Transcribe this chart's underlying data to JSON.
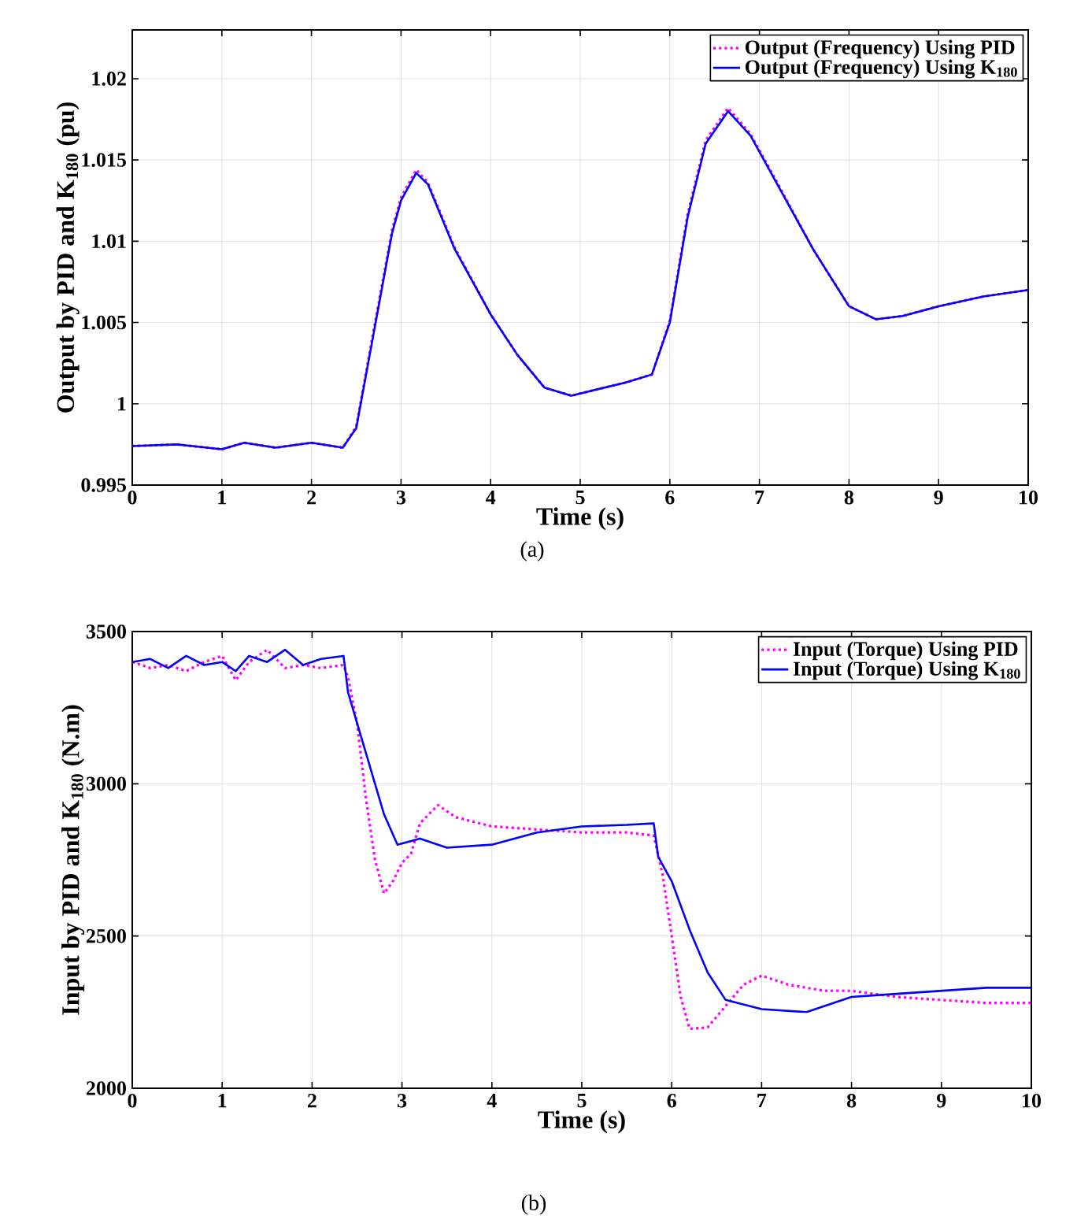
{
  "chart_data": [
    {
      "type": "line",
      "xlabel": "Time (s)",
      "ylabel": "Output by PID and K$_{180}$ (pu)",
      "annotations": [
        "(a)"
      ],
      "xlim": [
        0,
        10
      ],
      "ylim": [
        0.995,
        1.023
      ],
      "xticks": [
        0,
        1,
        2,
        3,
        4,
        5,
        6,
        7,
        8,
        9,
        10
      ],
      "yticks": [
        0.995,
        1,
        1.005,
        1.01,
        1.015,
        1.02
      ],
      "grid": true,
      "legend": "top right",
      "series": [
        {
          "name": "Output (Frequency) Using PID",
          "color": "#ff00ff",
          "line_style": "dotted",
          "x": [
            0,
            0.5,
            1.0,
            1.25,
            1.6,
            2.0,
            2.35,
            2.5,
            2.7,
            2.9,
            3.0,
            3.17,
            3.3,
            3.6,
            4.0,
            4.3,
            4.6,
            4.9,
            5.2,
            5.5,
            5.8,
            6.0,
            6.2,
            6.4,
            6.65,
            6.9,
            7.2,
            7.6,
            8.0,
            8.3,
            8.6,
            9.0,
            9.5,
            10
          ],
          "values": [
            0.9974,
            0.9975,
            0.9972,
            0.9976,
            0.9973,
            0.9976,
            0.9973,
            0.9986,
            1.0047,
            1.0107,
            1.0127,
            1.0144,
            1.0136,
            1.0096,
            1.0055,
            1.003,
            1.001,
            1.0005,
            1.0009,
            1.0013,
            1.0018,
            1.0051,
            1.0117,
            1.0162,
            1.0182,
            1.0166,
            1.0136,
            1.0095,
            1.006,
            1.0052,
            1.0054,
            1.006,
            1.0066,
            1.007
          ]
        },
        {
          "name": "Output (Frequency) Using K$_{180}$",
          "color": "#0000ff",
          "line_style": "solid",
          "x": [
            0,
            0.5,
            1.0,
            1.25,
            1.6,
            2.0,
            2.35,
            2.5,
            2.7,
            2.9,
            3.0,
            3.17,
            3.3,
            3.6,
            4.0,
            4.3,
            4.6,
            4.9,
            5.2,
            5.5,
            5.8,
            6.0,
            6.2,
            6.4,
            6.65,
            6.9,
            7.2,
            7.6,
            8.0,
            8.3,
            8.6,
            9.0,
            9.5,
            10
          ],
          "values": [
            0.9974,
            0.9975,
            0.9972,
            0.9976,
            0.9973,
            0.9976,
            0.9973,
            0.9985,
            1.0045,
            1.0105,
            1.0125,
            1.0142,
            1.0135,
            1.0095,
            1.0055,
            1.003,
            1.001,
            1.0005,
            1.0009,
            1.0013,
            1.0018,
            1.005,
            1.0115,
            1.016,
            1.018,
            1.0165,
            1.0135,
            1.0095,
            1.006,
            1.0052,
            1.0054,
            1.006,
            1.0066,
            1.007
          ]
        }
      ]
    },
    {
      "type": "line",
      "xlabel": "Time (s)",
      "ylabel": "Input by PID and K$_{180}$ (N.m)",
      "annotations": [
        "(b)"
      ],
      "xlim": [
        0,
        10
      ],
      "ylim": [
        2000,
        3500
      ],
      "xticks": [
        0,
        1,
        2,
        3,
        4,
        5,
        6,
        7,
        8,
        9,
        10
      ],
      "yticks": [
        2000,
        2500,
        3000,
        3500
      ],
      "grid": true,
      "legend": "top right",
      "series": [
        {
          "name": "Input (Torque) Using PID",
          "color": "#ff00ff",
          "line_style": "dotted",
          "x": [
            0,
            0.2,
            0.4,
            0.6,
            0.8,
            1.0,
            1.15,
            1.3,
            1.5,
            1.7,
            1.9,
            2.1,
            2.35,
            2.4,
            2.5,
            2.6,
            2.7,
            2.8,
            2.9,
            3.0,
            3.1,
            3.2,
            3.4,
            3.6,
            4.0,
            4.5,
            5.0,
            5.5,
            5.8,
            5.9,
            6.0,
            6.1,
            6.2,
            6.4,
            6.6,
            6.8,
            7.0,
            7.3,
            7.7,
            8.0,
            8.5,
            9.0,
            9.5,
            10
          ],
          "values": [
            3400,
            3380,
            3390,
            3370,
            3400,
            3420,
            3340,
            3400,
            3440,
            3380,
            3390,
            3380,
            3390,
            3350,
            3200,
            2950,
            2750,
            2640,
            2680,
            2740,
            2770,
            2870,
            2930,
            2890,
            2860,
            2850,
            2840,
            2840,
            2830,
            2700,
            2500,
            2300,
            2195,
            2200,
            2270,
            2340,
            2370,
            2340,
            2320,
            2320,
            2300,
            2290,
            2280,
            2280
          ]
        },
        {
          "name": "Input (Torque) Using K$_{180}$",
          "color": "#0000ff",
          "line_style": "solid",
          "x": [
            0,
            0.2,
            0.4,
            0.6,
            0.8,
            1.0,
            1.15,
            1.3,
            1.5,
            1.7,
            1.9,
            2.1,
            2.35,
            2.4,
            2.6,
            2.8,
            2.95,
            3.2,
            3.5,
            4.0,
            4.5,
            5.0,
            5.5,
            5.8,
            5.85,
            6.0,
            6.2,
            6.4,
            6.6,
            7.0,
            7.5,
            8.0,
            8.5,
            9.0,
            9.5,
            10
          ],
          "values": [
            3400,
            3410,
            3380,
            3420,
            3390,
            3400,
            3370,
            3420,
            3400,
            3440,
            3390,
            3410,
            3420,
            3300,
            3100,
            2900,
            2800,
            2820,
            2790,
            2800,
            2840,
            2860,
            2865,
            2870,
            2760,
            2680,
            2520,
            2380,
            2290,
            2260,
            2250,
            2300,
            2310,
            2320,
            2330,
            2330
          ]
        }
      ]
    }
  ]
}
